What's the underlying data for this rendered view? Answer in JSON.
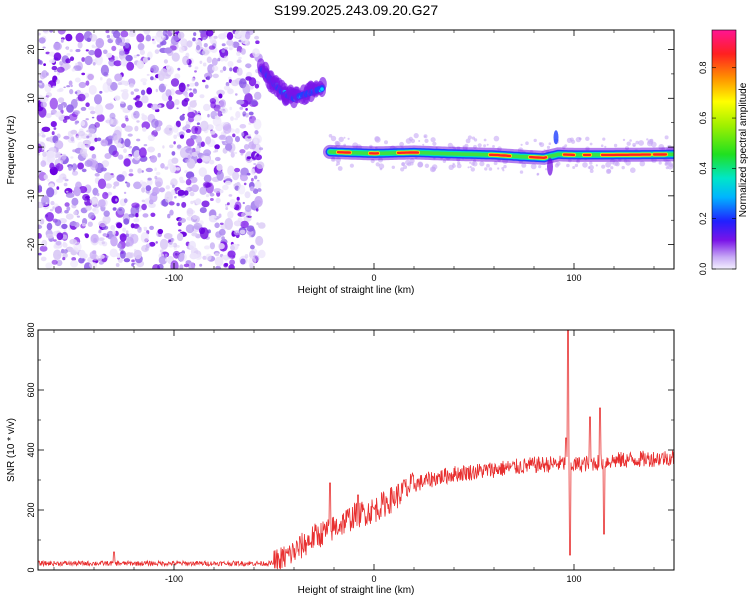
{
  "title": "S199.2025.243.09.20.G27",
  "chart_data": [
    {
      "type": "heatmap",
      "xlabel": "Height of straight line (km)",
      "ylabel": "Frequency (Hz)",
      "xlim": [
        -168,
        150
      ],
      "ylim": [
        -25,
        24
      ],
      "xticks": [
        -100,
        0,
        100
      ],
      "yticks": [
        -20,
        -10,
        0,
        10,
        20
      ],
      "colorbar": {
        "label": "Normalized spectral amplitude",
        "range": [
          0,
          0.95
        ],
        "ticks": [
          "0.0",
          "0.2",
          "0.4",
          "0.6",
          "0.8"
        ],
        "tick_values": [
          0,
          0.2,
          0.4,
          0.6,
          0.8
        ]
      },
      "features": {
        "noise_region_x": [
          -168,
          -56
        ],
        "low_arc": [
          [
            -56,
            16
          ],
          [
            -50,
            13
          ],
          [
            -45,
            11
          ],
          [
            -40,
            10
          ],
          [
            -33,
            11
          ],
          [
            -26,
            12
          ]
        ],
        "carrier_line": {
          "x_range": [
            -22,
            150
          ],
          "points": [
            [
              -22,
              -1
            ],
            [
              0,
              -1.3
            ],
            [
              20,
              -1.1
            ],
            [
              40,
              -1.4
            ],
            [
              60,
              -1.6
            ],
            [
              75,
              -2
            ],
            [
              85,
              -2.2
            ],
            [
              92,
              -1.5
            ],
            [
              100,
              -1.6
            ],
            [
              120,
              -1.6
            ],
            [
              150,
              -1.5
            ]
          ]
        }
      }
    },
    {
      "type": "line",
      "xlabel": "Height of straight line (km)",
      "ylabel": "SNR (10 * v/v)",
      "xlim": [
        -168,
        150
      ],
      "ylim": [
        0,
        800
      ],
      "xticks": [
        -100,
        0,
        100
      ],
      "yticks": [
        0,
        200,
        400,
        600,
        800
      ],
      "series": [
        {
          "color": "#e83030",
          "trend": [
            [
              -168,
              22
            ],
            [
              -50,
              22
            ],
            [
              -40,
              60
            ],
            [
              -30,
              110
            ],
            [
              -20,
              140
            ],
            [
              -10,
              180
            ],
            [
              0,
              200
            ],
            [
              10,
              240
            ],
            [
              20,
              285
            ],
            [
              30,
              305
            ],
            [
              40,
              320
            ],
            [
              60,
              335
            ],
            [
              80,
              350
            ],
            [
              95,
              355
            ],
            [
              100,
              350
            ],
            [
              120,
              365
            ],
            [
              150,
              375
            ]
          ],
          "spikes": [
            [
              -130,
              60
            ],
            [
              -22,
              290
            ],
            [
              -8,
              250
            ],
            [
              15,
              300
            ],
            [
              97,
              800
            ],
            [
              98,
              50
            ],
            [
              96,
              440
            ],
            [
              108,
              510
            ],
            [
              113,
              540
            ],
            [
              115,
              120
            ]
          ]
        }
      ]
    }
  ]
}
